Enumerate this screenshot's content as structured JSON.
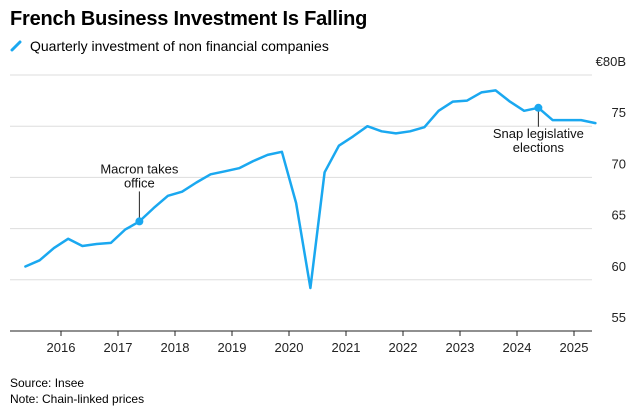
{
  "title": "French Business Investment Is Falling",
  "legend_label": "Quarterly investment of non financial companies",
  "source": "Source: Insee",
  "note": "Note: Chain-linked prices",
  "colors": {
    "series": "#1aa8f0",
    "grid": "#dddddd",
    "axis": "#222222",
    "annotation": "#222222"
  },
  "chart_data": {
    "type": "line",
    "title": "French Business Investment Is Falling",
    "y_unit_label": "€80B",
    "ylim": [
      55,
      80
    ],
    "y_ticks": [
      55,
      60,
      65,
      70,
      75
    ],
    "y_tick_labels": [
      "55",
      "60",
      "65",
      "70",
      "75"
    ],
    "x_ticks": [
      2016,
      2017,
      2018,
      2019,
      2020,
      2021,
      2022,
      2023,
      2024,
      2025
    ],
    "x_tick_labels": [
      "2016",
      "2017",
      "2018",
      "2019",
      "2020",
      "2021",
      "2022",
      "2023",
      "2024",
      "2025"
    ],
    "grid": true,
    "legend_position": "top-left",
    "series": [
      {
        "name": "Quarterly investment of non financial companies",
        "x": [
          "2015-Q2",
          "2015-Q3",
          "2015-Q4",
          "2016-Q1",
          "2016-Q2",
          "2016-Q3",
          "2016-Q4",
          "2017-Q1",
          "2017-Q2",
          "2017-Q3",
          "2017-Q4",
          "2018-Q1",
          "2018-Q2",
          "2018-Q3",
          "2018-Q4",
          "2019-Q1",
          "2019-Q2",
          "2019-Q3",
          "2019-Q4",
          "2020-Q1",
          "2020-Q2",
          "2020-Q3",
          "2020-Q4",
          "2021-Q1",
          "2021-Q2",
          "2021-Q3",
          "2021-Q4",
          "2022-Q1",
          "2022-Q2",
          "2022-Q3",
          "2022-Q4",
          "2023-Q1",
          "2023-Q2",
          "2023-Q3",
          "2023-Q4",
          "2024-Q1",
          "2024-Q2",
          "2024-Q3",
          "2024-Q4",
          "2025-Q1",
          "2025-Q2"
        ],
        "values": [
          61.3,
          61.9,
          63.1,
          64.0,
          63.3,
          63.5,
          63.6,
          64.9,
          65.7,
          67.0,
          68.2,
          68.6,
          69.5,
          70.3,
          70.6,
          70.9,
          71.6,
          72.2,
          72.5,
          67.5,
          59.2,
          70.5,
          73.1,
          74.0,
          75.0,
          74.5,
          74.3,
          74.5,
          74.9,
          76.5,
          77.4,
          77.5,
          78.3,
          78.5,
          77.4,
          76.5,
          76.8,
          75.6,
          75.6,
          75.6,
          75.3
        ],
        "color": "#1aa8f0"
      }
    ],
    "annotations": [
      {
        "text_lines": [
          "Macron takes",
          "office"
        ],
        "x": "2017-Q2",
        "y": 65.7
      },
      {
        "text_lines": [
          "Snap legislative",
          "elections"
        ],
        "x": "2024-Q2",
        "y": 76.8
      }
    ]
  }
}
